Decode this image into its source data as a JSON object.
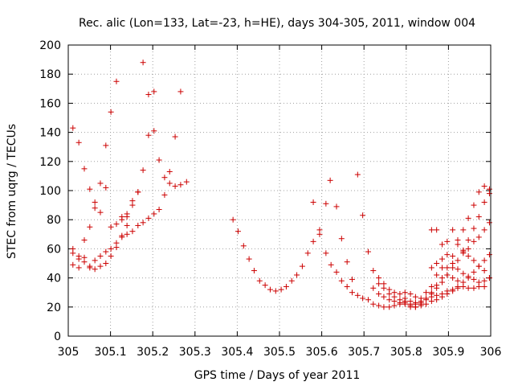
{
  "chart_data": {
    "type": "scatter",
    "title": "Rec. alic (Lon=133, Lat=-23, h=HE), days 304-305, 2011, window 004",
    "xlabel": "GPS time / Days of year 2011",
    "ylabel": "STEC from uqrg / TECUs",
    "xlim": [
      305,
      306
    ],
    "ylim": [
      0,
      200
    ],
    "x_ticks": [
      305,
      305.1,
      305.2,
      305.3,
      305.4,
      305.5,
      305.6,
      305.7,
      305.8,
      305.9,
      306
    ],
    "x_tick_labels": [
      "305",
      "305.1",
      "305.2",
      "305.3",
      "305.4",
      "305.5",
      "305.6",
      "305.7",
      "305.8",
      "305.9",
      "306"
    ],
    "y_ticks": [
      0,
      20,
      40,
      60,
      80,
      100,
      120,
      140,
      160,
      180,
      200
    ],
    "y_tick_labels": [
      "0",
      "20",
      "40",
      "60",
      "80",
      "100",
      "120",
      "140",
      "160",
      "180",
      "200"
    ],
    "grid": true,
    "marker": "+",
    "marker_color": "#cc0000",
    "series": [
      {
        "points": [
          [
            305.011,
            143
          ],
          [
            305.025,
            133
          ],
          [
            305.038,
            115
          ],
          [
            305.051,
            101
          ],
          [
            305.063,
            92
          ],
          [
            305.076,
            85
          ],
          [
            305.089,
            131
          ],
          [
            305.101,
            154
          ],
          [
            305.114,
            175
          ],
          [
            305.127,
            80
          ],
          [
            305.139,
            82
          ],
          [
            305.152,
            93
          ],
          [
            305.165,
            99
          ],
          [
            305.177,
            114
          ],
          [
            305.19,
            138
          ],
          [
            305.203,
            141
          ],
          [
            305.215,
            121
          ],
          [
            305.228,
            109
          ],
          [
            305.24,
            113
          ],
          [
            305.253,
            137
          ],
          [
            305.266,
            168
          ],
          [
            305.28,
            106
          ],
          [
            305.011,
            57
          ],
          [
            305.025,
            53
          ],
          [
            305.038,
            66
          ],
          [
            305.051,
            75
          ],
          [
            305.063,
            88
          ],
          [
            305.076,
            105
          ],
          [
            305.089,
            102
          ],
          [
            305.101,
            75
          ],
          [
            305.114,
            77
          ],
          [
            305.127,
            82
          ],
          [
            305.139,
            84
          ],
          [
            305.152,
            90
          ],
          [
            305.165,
            99
          ],
          [
            305.177,
            188
          ],
          [
            305.19,
            166
          ],
          [
            305.203,
            168
          ],
          [
            305.215,
            87
          ],
          [
            305.228,
            97
          ],
          [
            305.24,
            105
          ],
          [
            305.253,
            103
          ],
          [
            305.266,
            104
          ],
          [
            305.011,
            49
          ],
          [
            305.025,
            47
          ],
          [
            305.038,
            54
          ],
          [
            305.051,
            48
          ],
          [
            305.063,
            52
          ],
          [
            305.076,
            55
          ],
          [
            305.089,
            58
          ],
          [
            305.101,
            60
          ],
          [
            305.114,
            64
          ],
          [
            305.127,
            68
          ],
          [
            305.139,
            70
          ],
          [
            305.152,
            72
          ],
          [
            305.165,
            76
          ],
          [
            305.177,
            78
          ],
          [
            305.19,
            81
          ],
          [
            305.203,
            84
          ],
          [
            305.011,
            60
          ],
          [
            305.025,
            55
          ],
          [
            305.038,
            51
          ],
          [
            305.051,
            47
          ],
          [
            305.063,
            46
          ],
          [
            305.076,
            48
          ],
          [
            305.089,
            50
          ],
          [
            305.101,
            55
          ],
          [
            305.114,
            61
          ],
          [
            305.127,
            69
          ],
          [
            305.139,
            76
          ],
          [
            305.39,
            80
          ],
          [
            305.402,
            72
          ],
          [
            305.415,
            62
          ],
          [
            305.428,
            53
          ],
          [
            305.44,
            45
          ],
          [
            305.453,
            38
          ],
          [
            305.466,
            35
          ],
          [
            305.478,
            32
          ],
          [
            305.491,
            31
          ],
          [
            305.504,
            32
          ],
          [
            305.516,
            34
          ],
          [
            305.529,
            38
          ],
          [
            305.541,
            42
          ],
          [
            305.554,
            48
          ],
          [
            305.567,
            57
          ],
          [
            305.58,
            65
          ],
          [
            305.58,
            92
          ],
          [
            305.595,
            70
          ],
          [
            305.61,
            91
          ],
          [
            305.62,
            107
          ],
          [
            305.635,
            89
          ],
          [
            305.647,
            67
          ],
          [
            305.66,
            51
          ],
          [
            305.672,
            39
          ],
          [
            305.685,
            111
          ],
          [
            305.697,
            83
          ],
          [
            305.71,
            58
          ],
          [
            305.595,
            73
          ],
          [
            305.61,
            57
          ],
          [
            305.622,
            49
          ],
          [
            305.635,
            44
          ],
          [
            305.647,
            38
          ],
          [
            305.66,
            34
          ],
          [
            305.672,
            30
          ],
          [
            305.685,
            28
          ],
          [
            305.697,
            26
          ],
          [
            305.71,
            25
          ],
          [
            305.722,
            22
          ],
          [
            305.735,
            21
          ],
          [
            305.747,
            20
          ],
          [
            305.76,
            20
          ],
          [
            305.772,
            21
          ],
          [
            305.785,
            22
          ],
          [
            305.797,
            24
          ],
          [
            305.81,
            22
          ],
          [
            305.822,
            22
          ],
          [
            305.835,
            23
          ],
          [
            305.847,
            25
          ],
          [
            305.86,
            27
          ],
          [
            305.872,
            28
          ],
          [
            305.885,
            29
          ],
          [
            305.897,
            31
          ],
          [
            305.91,
            32
          ],
          [
            305.922,
            33
          ],
          [
            305.935,
            34
          ],
          [
            305.947,
            33
          ],
          [
            305.96,
            33
          ],
          [
            305.972,
            34
          ],
          [
            305.985,
            34
          ],
          [
            305.722,
            45
          ],
          [
            305.735,
            40
          ],
          [
            305.747,
            36
          ],
          [
            305.76,
            32
          ],
          [
            305.772,
            30
          ],
          [
            305.785,
            29
          ],
          [
            305.797,
            26
          ],
          [
            305.81,
            24
          ],
          [
            305.822,
            23
          ],
          [
            305.835,
            24
          ],
          [
            305.847,
            26
          ],
          [
            305.86,
            29
          ],
          [
            305.872,
            33
          ],
          [
            305.885,
            37
          ],
          [
            305.897,
            42
          ],
          [
            305.91,
            47
          ],
          [
            305.922,
            52
          ],
          [
            305.935,
            58
          ],
          [
            305.947,
            66
          ],
          [
            305.96,
            74
          ],
          [
            305.972,
            82
          ],
          [
            305.985,
            92
          ],
          [
            305.997,
            101
          ],
          [
            305.722,
            33
          ],
          [
            305.735,
            29
          ],
          [
            305.747,
            27
          ],
          [
            305.76,
            25
          ],
          [
            305.772,
            24
          ],
          [
            305.785,
            23
          ],
          [
            305.797,
            22
          ],
          [
            305.81,
            20
          ],
          [
            305.822,
            20
          ],
          [
            305.835,
            21
          ],
          [
            305.847,
            22
          ],
          [
            305.86,
            24
          ],
          [
            305.872,
            25
          ],
          [
            305.885,
            27
          ],
          [
            305.897,
            29
          ],
          [
            305.91,
            31
          ],
          [
            305.922,
            34
          ],
          [
            305.935,
            37
          ],
          [
            305.947,
            41
          ],
          [
            305.96,
            44
          ],
          [
            305.972,
            48
          ],
          [
            305.985,
            52
          ],
          [
            305.997,
            56
          ],
          [
            305.735,
            36
          ],
          [
            305.747,
            33
          ],
          [
            305.76,
            29
          ],
          [
            305.772,
            27
          ],
          [
            305.785,
            25
          ],
          [
            305.797,
            23
          ],
          [
            305.81,
            21
          ],
          [
            305.822,
            20
          ],
          [
            305.835,
            22
          ],
          [
            305.847,
            26
          ],
          [
            305.86,
            30
          ],
          [
            305.872,
            35
          ],
          [
            305.885,
            40
          ],
          [
            305.897,
            47
          ],
          [
            305.91,
            55
          ],
          [
            305.922,
            63
          ],
          [
            305.935,
            73
          ],
          [
            305.947,
            81
          ],
          [
            305.96,
            90
          ],
          [
            305.972,
            99
          ],
          [
            305.985,
            103
          ],
          [
            305.997,
            98
          ],
          [
            305.797,
            30
          ],
          [
            305.81,
            29
          ],
          [
            305.822,
            27
          ],
          [
            305.835,
            26
          ],
          [
            305.847,
            30
          ],
          [
            305.86,
            34
          ],
          [
            305.872,
            42
          ],
          [
            305.885,
            53
          ],
          [
            305.897,
            65
          ],
          [
            305.91,
            73
          ],
          [
            305.922,
            66
          ],
          [
            305.935,
            59
          ],
          [
            305.947,
            55
          ],
          [
            305.96,
            52
          ],
          [
            305.972,
            48
          ],
          [
            305.985,
            45
          ],
          [
            305.997,
            40
          ],
          [
            305.86,
            73
          ],
          [
            305.872,
            73
          ],
          [
            305.885,
            63
          ],
          [
            305.897,
            56
          ],
          [
            305.91,
            50
          ],
          [
            305.922,
            46
          ],
          [
            305.935,
            43
          ],
          [
            305.947,
            40
          ],
          [
            305.96,
            39
          ],
          [
            305.972,
            37
          ],
          [
            305.985,
            38
          ],
          [
            305.997,
            40
          ],
          [
            305.86,
            47
          ],
          [
            305.872,
            50
          ],
          [
            305.885,
            47
          ],
          [
            305.897,
            42
          ],
          [
            305.91,
            40
          ],
          [
            305.922,
            38
          ],
          [
            305.935,
            57
          ],
          [
            305.947,
            60
          ],
          [
            305.96,
            65
          ],
          [
            305.972,
            68
          ],
          [
            305.985,
            73
          ],
          [
            305.997,
            78
          ]
        ]
      }
    ]
  }
}
